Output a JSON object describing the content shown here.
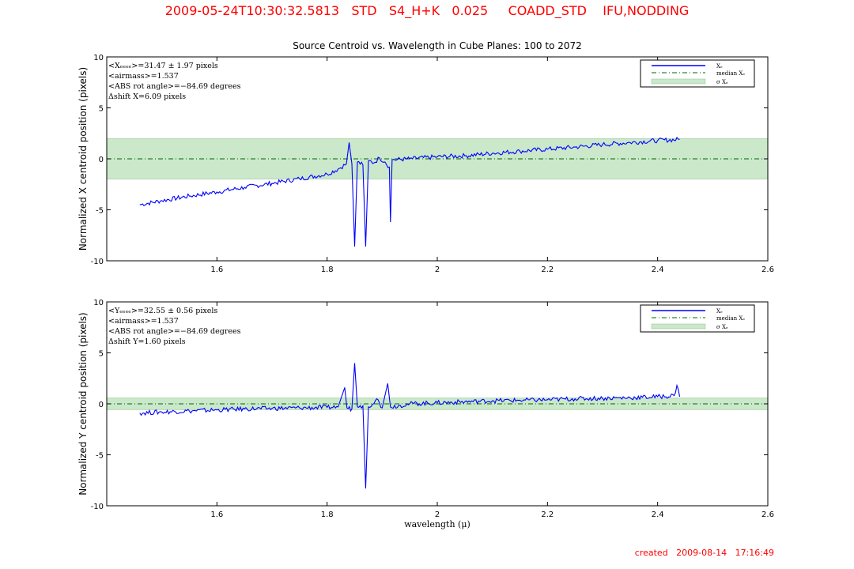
{
  "header": {
    "text": "2009-05-24T10:30:32.5813   STD   S4_H+K   0.025     COADD_STD    IFU,NODDING"
  },
  "footer": {
    "created": "created   2009-08-14   17:16:49"
  },
  "colors": {
    "header": "#ff0000",
    "series": "#0000ff",
    "median": "#006400",
    "sigma_band": "#a8d8a8"
  },
  "chart_data": [
    {
      "type": "line",
      "title": "Source Centroid vs. Wavelength in Cube Planes: 100 to 2072",
      "xlabel": "",
      "ylabel": "Normalized X centroid position (pixels)",
      "xlim": [
        1.4,
        2.6
      ],
      "ylim": [
        -10,
        10
      ],
      "xticks": [
        "1.6",
        "1.8",
        "2",
        "2.2",
        "2.4",
        "2.6"
      ],
      "yticks": [
        "10",
        "5",
        "0",
        "-5",
        "-10"
      ],
      "grid": false,
      "legend_placement": "top-right",
      "legend": [
        "Xₑ",
        "median Xₑ",
        "σ Xₑ"
      ],
      "annotations": [
        "<Xₑₑₑₑ>=31.47 ± 1.97 pixels",
        "<airmass>=1.537",
        "<ABS rot angle>=−84.69 degrees",
        "Δshift X=6.09 pixels"
      ],
      "median": 0,
      "sigma_band": [
        -1.97,
        1.97
      ],
      "series": [
        {
          "values": [
            [
              1.46,
              -4.5
            ],
            [
              1.5,
              -4.1
            ],
            [
              1.55,
              -3.65
            ],
            [
              1.6,
              -3.25
            ],
            [
              1.65,
              -2.8
            ],
            [
              1.7,
              -2.4
            ],
            [
              1.75,
              -1.95
            ],
            [
              1.8,
              -1.5
            ],
            [
              1.82,
              -1.0
            ],
            [
              1.835,
              -0.5
            ],
            [
              1.84,
              1.6
            ],
            [
              1.845,
              -0.5
            ],
            [
              1.85,
              -8.6
            ],
            [
              1.855,
              -0.3
            ],
            [
              1.865,
              -0.6
            ],
            [
              1.87,
              -8.6
            ],
            [
              1.875,
              -0.2
            ],
            [
              1.885,
              -0.4
            ],
            [
              1.895,
              0.1
            ],
            [
              1.905,
              -0.3
            ],
            [
              1.913,
              -0.8
            ],
            [
              1.915,
              -6.2
            ],
            [
              1.918,
              -0.1
            ],
            [
              1.95,
              0.0
            ],
            [
              2.0,
              0.2
            ],
            [
              2.05,
              0.3
            ],
            [
              2.1,
              0.55
            ],
            [
              2.15,
              0.75
            ],
            [
              2.2,
              0.95
            ],
            [
              2.25,
              1.15
            ],
            [
              2.3,
              1.4
            ],
            [
              2.35,
              1.6
            ],
            [
              2.4,
              1.8
            ],
            [
              2.44,
              1.9
            ]
          ]
        }
      ]
    },
    {
      "type": "line",
      "title": "",
      "xlabel": "wavelength (μ)",
      "ylabel": "Normalized Y centroid position (pixels)",
      "xlim": [
        1.4,
        2.6
      ],
      "ylim": [
        -10,
        10
      ],
      "xticks": [
        "1.6",
        "1.8",
        "2",
        "2.2",
        "2.4",
        "2.6"
      ],
      "yticks": [
        "10",
        "5",
        "0",
        "-5",
        "-10"
      ],
      "grid": false,
      "legend_placement": "top-right",
      "legend": [
        "Xₑ",
        "median Xₑ",
        "σ Xₑ"
      ],
      "annotations": [
        "<Yₑₑₑₑ>=32.55 ± 0.56 pixels",
        "<airmass>=1.537",
        "<ABS rot angle>=−84.69 degrees",
        "Δshift Y=1.60 pixels"
      ],
      "median": 0,
      "sigma_band": [
        -0.56,
        0.56
      ],
      "series": [
        {
          "values": [
            [
              1.46,
              -0.9
            ],
            [
              1.5,
              -0.8
            ],
            [
              1.55,
              -0.7
            ],
            [
              1.6,
              -0.6
            ],
            [
              1.65,
              -0.5
            ],
            [
              1.7,
              -0.45
            ],
            [
              1.75,
              -0.4
            ],
            [
              1.8,
              -0.35
            ],
            [
              1.82,
              -0.3
            ],
            [
              1.832,
              1.6
            ],
            [
              1.836,
              -0.4
            ],
            [
              1.845,
              -0.5
            ],
            [
              1.85,
              4.0
            ],
            [
              1.855,
              -0.3
            ],
            [
              1.865,
              -0.2
            ],
            [
              1.87,
              -8.3
            ],
            [
              1.875,
              -0.3
            ],
            [
              1.89,
              0.5
            ],
            [
              1.9,
              -0.4
            ],
            [
              1.91,
              2.0
            ],
            [
              1.915,
              -0.3
            ],
            [
              1.95,
              0.0
            ],
            [
              2.0,
              0.1
            ],
            [
              2.05,
              0.2
            ],
            [
              2.1,
              0.3
            ],
            [
              2.15,
              0.35
            ],
            [
              2.2,
              0.4
            ],
            [
              2.25,
              0.5
            ],
            [
              2.3,
              0.55
            ],
            [
              2.35,
              0.6
            ],
            [
              2.4,
              0.7
            ],
            [
              2.43,
              0.8
            ],
            [
              2.435,
              1.8
            ],
            [
              2.44,
              0.7
            ]
          ]
        }
      ]
    }
  ]
}
